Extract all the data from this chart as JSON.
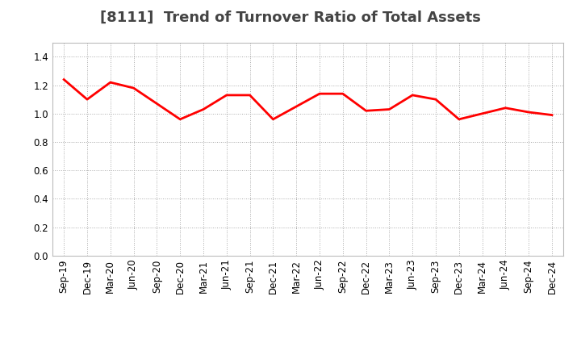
{
  "title": "[8111]  Trend of Turnover Ratio of Total Assets",
  "x_labels": [
    "Sep-19",
    "Dec-19",
    "Mar-20",
    "Jun-20",
    "Sep-20",
    "Dec-20",
    "Mar-21",
    "Jun-21",
    "Sep-21",
    "Dec-21",
    "Mar-22",
    "Jun-22",
    "Sep-22",
    "Dec-22",
    "Mar-23",
    "Jun-23",
    "Sep-23",
    "Dec-23",
    "Mar-24",
    "Jun-24",
    "Sep-24",
    "Dec-24"
  ],
  "values": [
    1.24,
    1.1,
    1.22,
    1.18,
    1.07,
    0.96,
    1.03,
    1.13,
    1.13,
    0.96,
    1.05,
    1.14,
    1.14,
    1.02,
    1.03,
    1.13,
    1.1,
    0.96,
    1.0,
    1.04,
    1.01,
    0.99
  ],
  "line_color": "#ff0000",
  "line_width": 2.0,
  "ylim": [
    0.0,
    1.5
  ],
  "yticks": [
    0.0,
    0.2,
    0.4,
    0.6,
    0.8,
    1.0,
    1.2,
    1.4
  ],
  "grid_color": "#aaaaaa",
  "grid_style": "dotted",
  "bg_color": "#ffffff",
  "plot_bg_color": "#ffffff",
  "title_fontsize": 13,
  "tick_fontsize": 8.5,
  "title_color": "#444444"
}
